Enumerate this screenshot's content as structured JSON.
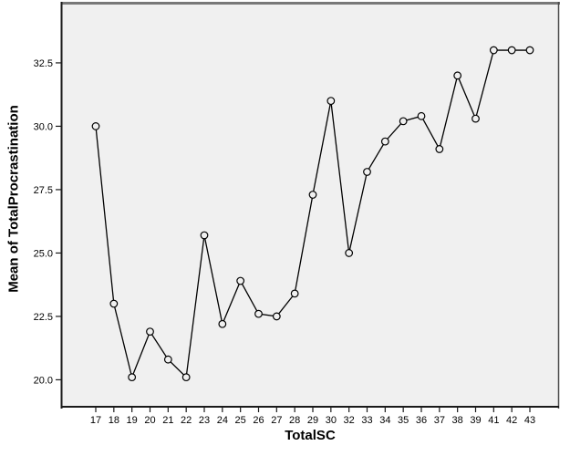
{
  "chart_data": {
    "type": "line",
    "title": "",
    "xlabel": "TotalSC",
    "ylabel": "Mean of TotalProcrastination",
    "categories": [
      "17",
      "18",
      "19",
      "20",
      "21",
      "22",
      "23",
      "24",
      "25",
      "26",
      "27",
      "28",
      "29",
      "30",
      "32",
      "33",
      "34",
      "35",
      "36",
      "37",
      "38",
      "39",
      "41",
      "42",
      "43"
    ],
    "values": [
      30.0,
      23.0,
      20.1,
      21.9,
      20.8,
      20.1,
      25.7,
      22.2,
      23.9,
      22.6,
      22.5,
      23.4,
      27.3,
      31.0,
      25.0,
      28.2,
      29.4,
      30.2,
      30.4,
      29.1,
      32.0,
      30.3,
      33.0,
      33.0,
      33.0
    ],
    "yticks": [
      20.0,
      22.5,
      25.0,
      27.5,
      30.0,
      32.5
    ],
    "ytick_labels": [
      "20.0",
      "22.5",
      "25.0",
      "27.5",
      "30.0",
      "32.5"
    ],
    "ylim": [
      18.9,
      34.8
    ],
    "grid": false,
    "legend": "none",
    "marker": "open-circle",
    "colors": {
      "line": "#000000",
      "marker_stroke": "#000000",
      "marker_fill": "#f0f0f0",
      "plot_background": "#f0f0f0",
      "frame_top": "#787878",
      "frame_side": "#4a4a4a",
      "frame_dark": "#1a1a1a",
      "text": "#000000"
    }
  }
}
